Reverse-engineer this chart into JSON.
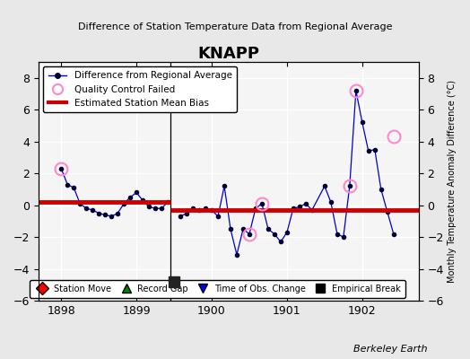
{
  "title": "KNAPP",
  "subtitle": "Difference of Station Temperature Data from Regional Average",
  "ylabel_right": "Monthly Temperature Anomaly Difference (°C)",
  "background_color": "#e8e8e8",
  "plot_bg_color": "#f5f5f5",
  "xlim": [
    1897.7,
    1902.75
  ],
  "ylim": [
    -6,
    9
  ],
  "yticks": [
    -6,
    -4,
    -2,
    0,
    2,
    4,
    6,
    8
  ],
  "xticks": [
    1898,
    1899,
    1900,
    1901,
    1902
  ],
  "bias_segments": [
    {
      "x": [
        1897.7,
        1899.45
      ],
      "y": [
        0.2,
        0.2
      ]
    },
    {
      "x": [
        1899.45,
        1902.75
      ],
      "y": [
        -0.3,
        -0.3
      ]
    }
  ],
  "main_line_xy": [
    [
      1898.0,
      2.3
    ],
    [
      1898.083,
      1.3
    ],
    [
      1898.167,
      1.1
    ],
    [
      1898.25,
      0.1
    ],
    [
      1898.333,
      -0.2
    ],
    [
      1898.417,
      -0.3
    ],
    [
      1898.5,
      -0.5
    ],
    [
      1898.583,
      -0.6
    ],
    [
      1898.667,
      -0.7
    ],
    [
      1898.75,
      -0.5
    ],
    [
      1898.833,
      0.1
    ],
    [
      1898.917,
      0.5
    ],
    [
      1899.0,
      0.8
    ],
    [
      1899.083,
      0.3
    ],
    [
      1899.167,
      -0.1
    ],
    [
      1899.25,
      -0.2
    ],
    [
      1899.333,
      -0.2
    ],
    [
      1899.417,
      0.2
    ],
    [
      1899.583,
      -0.7
    ],
    [
      1899.667,
      -0.5
    ],
    [
      1899.75,
      -0.2
    ],
    [
      1899.833,
      -0.3
    ],
    [
      1899.917,
      -0.2
    ],
    [
      1900.0,
      -0.3
    ],
    [
      1900.083,
      -0.7
    ],
    [
      1900.167,
      1.2
    ],
    [
      1900.25,
      -1.5
    ],
    [
      1900.333,
      -3.1
    ],
    [
      1900.417,
      -1.5
    ],
    [
      1900.5,
      -1.8
    ],
    [
      1900.583,
      -0.2
    ],
    [
      1900.667,
      0.1
    ],
    [
      1900.75,
      -1.5
    ],
    [
      1900.833,
      -1.8
    ],
    [
      1900.917,
      -2.3
    ],
    [
      1901.0,
      -1.7
    ],
    [
      1901.083,
      -0.2
    ],
    [
      1901.167,
      -0.1
    ],
    [
      1901.25,
      0.1
    ],
    [
      1901.333,
      -0.3
    ],
    [
      1901.5,
      1.2
    ],
    [
      1901.583,
      0.2
    ],
    [
      1901.667,
      -1.8
    ],
    [
      1901.75,
      -2.0
    ],
    [
      1901.833,
      1.2
    ],
    [
      1901.917,
      7.2
    ],
    [
      1902.0,
      5.2
    ],
    [
      1902.083,
      3.4
    ],
    [
      1902.167,
      3.5
    ],
    [
      1902.25,
      1.0
    ],
    [
      1902.333,
      -0.4
    ],
    [
      1902.417,
      -1.8
    ]
  ],
  "qc_failed": [
    [
      1898.0,
      2.3
    ],
    [
      1900.5,
      -1.8
    ],
    [
      1900.667,
      0.1
    ],
    [
      1901.833,
      1.2
    ],
    [
      1901.917,
      7.2
    ],
    [
      1902.417,
      4.3
    ]
  ],
  "empirical_break": [
    [
      1899.5,
      -4.8
    ]
  ],
  "vertical_line_x": 1899.45,
  "berkeley_earth_text": "Berkeley Earth",
  "line_color": "#0000cc",
  "bias_color": "#cc0000",
  "qc_color": "#ff88cc",
  "marker_color": "#000033",
  "empirical_break_color": "#222222"
}
